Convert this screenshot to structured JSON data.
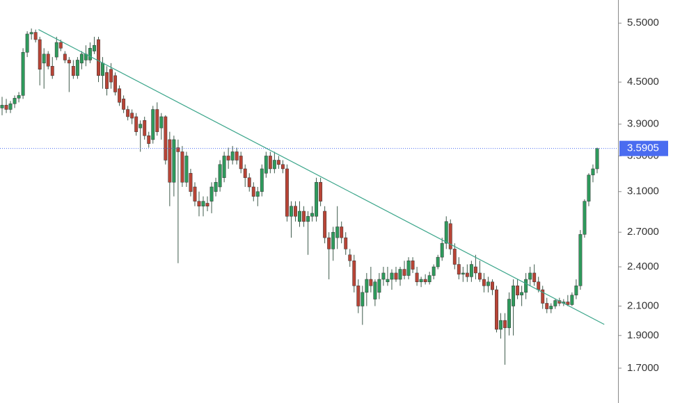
{
  "chart_data": {
    "type": "candlestick",
    "log_scale": true,
    "ylim": [
      1.51,
      5.95
    ],
    "yticks": [
      {
        "value": 5.5,
        "label": "5.5000"
      },
      {
        "value": 4.5,
        "label": "4.5000"
      },
      {
        "value": 3.9,
        "label": "3.9000"
      },
      {
        "value": 3.5,
        "label": "3.5000"
      },
      {
        "value": 3.1,
        "label": "3.1000"
      },
      {
        "value": 2.7,
        "label": "2.7000"
      },
      {
        "value": 2.4,
        "label": "2.4000"
      },
      {
        "value": 2.1,
        "label": "2.1000"
      },
      {
        "value": 1.9,
        "label": "1.9000"
      },
      {
        "value": 1.7,
        "label": "1.7000"
      }
    ],
    "last_price": {
      "value": 3.5905,
      "label": "3.5905"
    },
    "up_color": "#2e9a5c",
    "down_color": "#b84436",
    "price_line_color": "#4a6cf0",
    "trendline_color": "#3aa58a",
    "trendline": {
      "x": [
        8.7,
        143.7
      ],
      "y": [
        5.38,
        1.973
      ]
    },
    "ohlc": [
      [
        4.12,
        4.28,
        4.02,
        4.16
      ],
      [
        4.16,
        4.25,
        4.05,
        4.1
      ],
      [
        4.1,
        4.22,
        4.05,
        4.18
      ],
      [
        4.18,
        4.3,
        4.12,
        4.26
      ],
      [
        4.26,
        4.35,
        4.2,
        4.3
      ],
      [
        4.3,
        5.05,
        4.25,
        4.98
      ],
      [
        4.98,
        5.35,
        4.9,
        5.3
      ],
      [
        5.3,
        5.4,
        5.2,
        5.33
      ],
      [
        5.33,
        5.38,
        5.15,
        5.2
      ],
      [
        5.2,
        5.25,
        4.45,
        4.7
      ],
      [
        4.8,
        5.05,
        4.4,
        4.95
      ],
      [
        4.95,
        5.0,
        4.7,
        4.75
      ],
      [
        4.75,
        4.9,
        4.55,
        4.6
      ],
      [
        4.9,
        5.25,
        4.85,
        5.15
      ],
      [
        5.15,
        5.2,
        5.0,
        5.05
      ],
      [
        4.95,
        5.0,
        4.8,
        4.85
      ],
      [
        4.85,
        4.9,
        4.35,
        4.8
      ],
      [
        4.75,
        4.85,
        4.55,
        4.6
      ],
      [
        4.6,
        4.9,
        4.55,
        4.85
      ],
      [
        4.8,
        5.0,
        4.7,
        4.95
      ],
      [
        4.85,
        5.1,
        4.75,
        4.95
      ],
      [
        4.85,
        5.15,
        4.8,
        5.05
      ],
      [
        5.0,
        5.25,
        4.95,
        5.1
      ],
      [
        5.2,
        5.25,
        4.5,
        4.6
      ],
      [
        4.6,
        4.9,
        4.4,
        4.8
      ],
      [
        4.65,
        4.75,
        4.3,
        4.4
      ],
      [
        4.7,
        4.8,
        4.4,
        4.5
      ],
      [
        4.6,
        4.65,
        4.3,
        4.35
      ],
      [
        4.4,
        4.45,
        4.15,
        4.2
      ],
      [
        4.25,
        4.3,
        4.05,
        4.1
      ],
      [
        4.1,
        4.15,
        3.95,
        4.0
      ],
      [
        4.05,
        4.1,
        3.9,
        3.98
      ],
      [
        4.0,
        4.05,
        3.75,
        3.8
      ],
      [
        3.85,
        3.95,
        3.55,
        3.9
      ],
      [
        3.95,
        4.0,
        3.7,
        3.75
      ],
      [
        3.75,
        3.8,
        3.6,
        3.65
      ],
      [
        3.7,
        4.15,
        3.65,
        4.1
      ],
      [
        4.1,
        4.2,
        3.75,
        3.8
      ],
      [
        3.85,
        4.05,
        3.7,
        4.0
      ],
      [
        4.0,
        4.02,
        3.4,
        3.45
      ],
      [
        3.7,
        3.8,
        2.95,
        3.2
      ],
      [
        3.2,
        3.75,
        3.05,
        3.7
      ],
      [
        3.6,
        3.7,
        2.43,
        3.55
      ],
      [
        3.55,
        3.62,
        3.15,
        3.2
      ],
      [
        3.2,
        3.55,
        3.15,
        3.5
      ],
      [
        3.3,
        3.35,
        3.05,
        3.1
      ],
      [
        3.15,
        3.2,
        2.95,
        3.0
      ],
      [
        3.0,
        3.1,
        2.85,
        2.95
      ],
      [
        2.95,
        3.05,
        2.85,
        3.0
      ],
      [
        2.98,
        3.05,
        2.9,
        2.95
      ],
      [
        3.0,
        3.2,
        2.88,
        3.15
      ],
      [
        3.1,
        3.25,
        3.05,
        3.2
      ],
      [
        3.15,
        3.45,
        3.1,
        3.4
      ],
      [
        3.25,
        3.55,
        3.2,
        3.5
      ],
      [
        3.5,
        3.6,
        3.35,
        3.45
      ],
      [
        3.45,
        3.62,
        3.4,
        3.55
      ],
      [
        3.55,
        3.6,
        3.4,
        3.45
      ],
      [
        3.5,
        3.55,
        3.3,
        3.35
      ],
      [
        3.35,
        3.4,
        3.15,
        3.25
      ],
      [
        3.25,
        3.3,
        3.1,
        3.15
      ],
      [
        3.15,
        3.2,
        3.0,
        3.05
      ],
      [
        3.05,
        3.15,
        2.95,
        3.1
      ],
      [
        3.1,
        3.4,
        3.05,
        3.35
      ],
      [
        3.3,
        3.55,
        3.25,
        3.5
      ],
      [
        3.5,
        3.55,
        3.3,
        3.35
      ],
      [
        3.35,
        3.55,
        3.3,
        3.45
      ],
      [
        3.45,
        3.5,
        3.35,
        3.4
      ],
      [
        3.4,
        3.45,
        3.3,
        3.35
      ],
      [
        3.35,
        3.4,
        2.8,
        2.85
      ],
      [
        2.85,
        3.0,
        2.65,
        2.95
      ],
      [
        2.95,
        3.0,
        2.8,
        2.85
      ],
      [
        2.8,
        3.0,
        2.75,
        2.9
      ],
      [
        2.9,
        2.95,
        2.75,
        2.8
      ],
      [
        2.8,
        2.9,
        2.5,
        2.85
      ],
      [
        2.85,
        2.95,
        2.8,
        2.88
      ],
      [
        2.85,
        3.25,
        2.8,
        3.2
      ],
      [
        3.2,
        3.25,
        2.95,
        3.0
      ],
      [
        2.9,
        2.95,
        2.6,
        2.65
      ],
      [
        2.65,
        2.7,
        2.3,
        2.55
      ],
      [
        2.55,
        2.75,
        2.45,
        2.7
      ],
      [
        2.65,
        2.95,
        2.55,
        2.75
      ],
      [
        2.75,
        2.8,
        2.6,
        2.65
      ],
      [
        2.65,
        2.7,
        2.5,
        2.55
      ],
      [
        2.5,
        2.55,
        2.4,
        2.45
      ],
      [
        2.45,
        2.5,
        2.2,
        2.25
      ],
      [
        2.25,
        2.3,
        2.05,
        2.1
      ],
      [
        2.1,
        2.25,
        1.97,
        2.2
      ],
      [
        2.2,
        2.35,
        2.1,
        2.3
      ],
      [
        2.3,
        2.4,
        2.2,
        2.25
      ],
      [
        2.15,
        2.3,
        2.1,
        2.28
      ],
      [
        2.2,
        2.35,
        2.15,
        2.3
      ],
      [
        2.3,
        2.4,
        2.25,
        2.35
      ],
      [
        2.28,
        2.4,
        2.25,
        2.3
      ],
      [
        2.3,
        2.38,
        2.22,
        2.35
      ],
      [
        2.35,
        2.4,
        2.28,
        2.3
      ],
      [
        2.3,
        2.4,
        2.25,
        2.38
      ],
      [
        2.38,
        2.45,
        2.3,
        2.33
      ],
      [
        2.33,
        2.48,
        2.3,
        2.45
      ],
      [
        2.45,
        2.48,
        2.35,
        2.38
      ],
      [
        2.35,
        2.4,
        2.25,
        2.28
      ],
      [
        2.28,
        2.32,
        2.24,
        2.3
      ],
      [
        2.3,
        2.34,
        2.26,
        2.28
      ],
      [
        2.28,
        2.36,
        2.26,
        2.33
      ],
      [
        2.33,
        2.42,
        2.3,
        2.4
      ],
      [
        2.4,
        2.5,
        2.38,
        2.48
      ],
      [
        2.48,
        2.65,
        2.45,
        2.6
      ],
      [
        2.6,
        2.85,
        2.55,
        2.8
      ],
      [
        2.78,
        2.82,
        2.5,
        2.55
      ],
      [
        2.55,
        2.6,
        2.38,
        2.42
      ],
      [
        2.42,
        2.48,
        2.3,
        2.34
      ],
      [
        2.34,
        2.4,
        2.28,
        2.35
      ],
      [
        2.35,
        2.42,
        2.28,
        2.32
      ],
      [
        2.32,
        2.45,
        2.28,
        2.42
      ],
      [
        2.4,
        2.5,
        2.3,
        2.35
      ],
      [
        2.35,
        2.45,
        2.28,
        2.3
      ],
      [
        2.3,
        2.35,
        2.2,
        2.25
      ],
      [
        2.25,
        2.32,
        2.2,
        2.28
      ],
      [
        2.28,
        2.3,
        2.18,
        2.22
      ],
      [
        2.22,
        2.25,
        1.92,
        1.94
      ],
      [
        1.94,
        2.05,
        1.88,
        2.0
      ],
      [
        2.0,
        2.05,
        1.72,
        1.95
      ],
      [
        1.95,
        2.2,
        1.9,
        2.15
      ],
      [
        2.1,
        2.3,
        1.9,
        2.25
      ],
      [
        2.25,
        2.3,
        2.15,
        2.18
      ],
      [
        2.18,
        2.25,
        2.1,
        2.2
      ],
      [
        2.2,
        2.35,
        2.15,
        2.3
      ],
      [
        2.3,
        2.4,
        2.25,
        2.35
      ],
      [
        2.35,
        2.42,
        2.25,
        2.28
      ],
      [
        2.28,
        2.32,
        2.2,
        2.22
      ],
      [
        2.22,
        2.25,
        2.08,
        2.12
      ],
      [
        2.12,
        2.16,
        2.05,
        2.08
      ],
      [
        2.08,
        2.12,
        2.05,
        2.1
      ],
      [
        2.1,
        2.15,
        2.08,
        2.14
      ],
      [
        2.14,
        2.16,
        2.1,
        2.12
      ],
      [
        2.12,
        2.15,
        2.1,
        2.13
      ],
      [
        2.13,
        2.18,
        2.1,
        2.11
      ],
      [
        2.11,
        2.2,
        2.1,
        2.18
      ],
      [
        2.18,
        2.3,
        2.15,
        2.25
      ],
      [
        2.25,
        2.72,
        2.22,
        2.68
      ],
      [
        2.68,
        3.02,
        2.65,
        3.0
      ],
      [
        3.0,
        3.3,
        2.95,
        3.28
      ],
      [
        3.28,
        3.4,
        3.2,
        3.35
      ],
      [
        3.35,
        3.6,
        3.3,
        3.5905
      ]
    ]
  }
}
